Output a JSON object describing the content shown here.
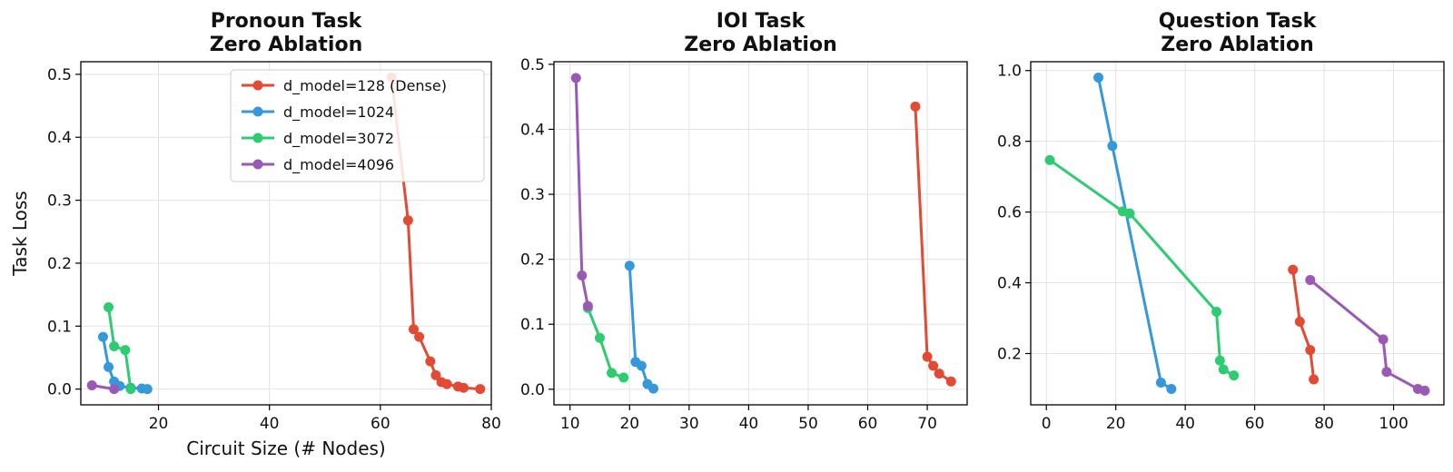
{
  "chart_data": [
    {
      "type": "line",
      "title": [
        "Pronoun Task",
        "Zero Ablation"
      ],
      "xlabel": "Circuit Size (# Nodes)",
      "ylabel": "Task Loss",
      "xlim": [
        6,
        80
      ],
      "ylim": [
        -0.025,
        0.52
      ],
      "xticks": [
        20,
        40,
        60,
        80
      ],
      "yticks": [
        0.0,
        0.1,
        0.2,
        0.3,
        0.4,
        0.5
      ],
      "ytick_labels": [
        "0.0",
        "0.1",
        "0.2",
        "0.3",
        "0.4",
        "0.5"
      ],
      "grid": true,
      "legend": "top-right",
      "series": [
        {
          "name": "d_model=128 (Dense)",
          "color": "#e34a33",
          "x": [
            62,
            65,
            66,
            67,
            69,
            70,
            71,
            72,
            74,
            75,
            78
          ],
          "y": [
            0.495,
            0.268,
            0.095,
            0.083,
            0.044,
            0.022,
            0.011,
            0.008,
            0.004,
            0.002,
            0.0
          ]
        },
        {
          "name": "d_model=1024",
          "color": "#3498db",
          "x": [
            10,
            11,
            12,
            13,
            15,
            17,
            18
          ],
          "y": [
            0.083,
            0.035,
            0.012,
            0.005,
            0.002,
            0.001,
            0.0
          ]
        },
        {
          "name": "d_model=3072",
          "color": "#2ecc71",
          "x": [
            11,
            12,
            14,
            15
          ],
          "y": [
            0.13,
            0.068,
            0.062,
            0.0
          ]
        },
        {
          "name": "d_model=4096",
          "color": "#9b59b6",
          "x": [
            8,
            12
          ],
          "y": [
            0.006,
            0.0
          ]
        }
      ]
    },
    {
      "type": "line",
      "title": [
        "IOI Task",
        "Zero Ablation"
      ],
      "xlabel": "",
      "ylabel": "",
      "xlim": [
        7.3,
        76.7
      ],
      "ylim": [
        -0.024,
        0.504
      ],
      "xticks": [
        10,
        20,
        30,
        40,
        50,
        60,
        70
      ],
      "yticks": [
        0.0,
        0.1,
        0.2,
        0.3,
        0.4,
        0.5
      ],
      "ytick_labels": [
        "0.0",
        "0.1",
        "0.2",
        "0.3",
        "0.4",
        "0.5"
      ],
      "grid": true,
      "series": [
        {
          "color": "#e34a33",
          "x": [
            68,
            70,
            71,
            72,
            74
          ],
          "y": [
            0.435,
            0.05,
            0.036,
            0.024,
            0.012
          ]
        },
        {
          "color": "#3498db",
          "x": [
            20,
            21,
            22,
            23,
            24
          ],
          "y": [
            0.19,
            0.042,
            0.036,
            0.008,
            0.001
          ]
        },
        {
          "color": "#2ecc71",
          "x": [
            13,
            15,
            17,
            19
          ],
          "y": [
            0.125,
            0.079,
            0.025,
            0.018
          ]
        },
        {
          "color": "#9b59b6",
          "x": [
            11,
            12,
            13
          ],
          "y": [
            0.479,
            0.175,
            0.128
          ]
        }
      ]
    },
    {
      "type": "line",
      "title": [
        "Question Task",
        "Zero Ablation"
      ],
      "xlabel": "",
      "ylabel": "",
      "xlim": [
        -4.5,
        114.5
      ],
      "ylim": [
        0.055,
        1.025
      ],
      "xticks": [
        0,
        20,
        40,
        60,
        80,
        100
      ],
      "yticks": [
        0.2,
        0.4,
        0.6,
        0.8,
        1.0
      ],
      "ytick_labels": [
        "0.2",
        "0.4",
        "0.6",
        "0.8",
        "1.0"
      ],
      "grid": true,
      "series": [
        {
          "color": "#e34a33",
          "x": [
            71,
            73,
            76,
            77
          ],
          "y": [
            0.437,
            0.29,
            0.21,
            0.127
          ]
        },
        {
          "color": "#3498db",
          "x": [
            15,
            19,
            33,
            36
          ],
          "y": [
            0.98,
            0.787,
            0.118,
            0.1
          ]
        },
        {
          "color": "#2ecc71",
          "x": [
            1,
            22,
            24,
            49,
            50,
            51,
            54
          ],
          "y": [
            0.747,
            0.602,
            0.596,
            0.318,
            0.18,
            0.155,
            0.138
          ]
        },
        {
          "color": "#9b59b6",
          "x": [
            76,
            97,
            98,
            107,
            109
          ],
          "y": [
            0.408,
            0.24,
            0.148,
            0.1,
            0.095
          ]
        }
      ]
    }
  ]
}
